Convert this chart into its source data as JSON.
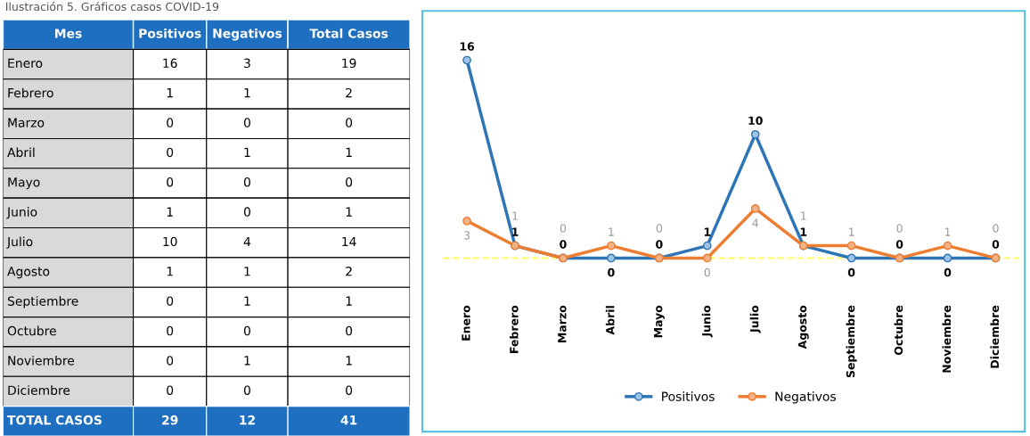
{
  "chart_data": [
    {
      "type": "other",
      "title": "Ilustración 5. Gráficos casos COVID-19",
      "ylabel": "Mes",
      "categories": [
        "Enero",
        "Febrero",
        "Marzo",
        "Abril",
        "Mayo",
        "Junio",
        "Julio",
        "Agosto",
        "Septiembre",
        "Octubre",
        "Noviembre",
        "Diciembre",
        "TOTAL CASOS"
      ],
      "series": [
        {
          "name": "Positivos",
          "values": [
            16,
            1,
            0,
            0,
            0,
            1,
            10,
            1,
            0,
            0,
            0,
            0,
            29
          ],
          "colors": [
            "#000000",
            "#000000",
            "#000000",
            "#000000",
            "#000000",
            "#000000",
            "#000000",
            "#000000",
            "#000000",
            "#000000",
            "#000000",
            "#000000",
            "#ffffff"
          ]
        },
        {
          "name": "Negativos",
          "values": [
            3,
            1,
            0,
            1,
            0,
            0,
            4,
            1,
            1,
            0,
            1,
            0,
            12
          ],
          "colors": [
            "#000000",
            "#000000",
            "#000000",
            "#000000",
            "#000000",
            "#000000",
            "#000000",
            "#000000",
            "#000000",
            "#000000",
            "#000000",
            "#000000",
            "#ffffff"
          ]
        },
        {
          "name": "Total Casos",
          "values": [
            19,
            2,
            0,
            1,
            0,
            1,
            14,
            2,
            1,
            0,
            1,
            0,
            41
          ],
          "colors": [
            "#000000",
            "#000000",
            "#000000",
            "#000000",
            "#000000",
            "#000000",
            "#000000",
            "#000000",
            "#000000",
            "#000000",
            "#000000",
            "#000000",
            "#ffffff"
          ]
        }
      ],
      "data_labels": true
    },
    {
      "type": "line",
      "categories": [
        "Enero",
        "Febrero",
        "Marzo",
        "Abril",
        "Mayo",
        "Junio",
        "Julio",
        "Agosto",
        "Septiembre",
        "Octubre",
        "Noviembre",
        "Diciembre"
      ],
      "series": [
        {
          "name": "Positivos",
          "color": "#2e75b6",
          "values": [
            16,
            1,
            0,
            0,
            0,
            1,
            10,
            1,
            0,
            0,
            0,
            0
          ]
        },
        {
          "name": "Negativos",
          "color": "#ed7d31",
          "values": [
            3,
            1,
            0,
            1,
            0,
            0,
            4,
            1,
            1,
            0,
            1,
            0
          ]
        }
      ],
      "marker": "circle",
      "line_style": "solid",
      "data_labels": true,
      "legend": "bottom",
      "grid": false,
      "tick_labels": "x",
      "ref_lines": [
        {
          "axis": "y",
          "value": 0,
          "label": null,
          "color": "#ffff66",
          "line_style": "dashed"
        }
      ]
    }
  ]
}
